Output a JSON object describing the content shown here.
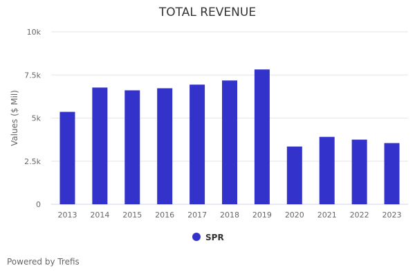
{
  "chart_data": {
    "type": "bar",
    "title": "TOTAL REVENUE",
    "xlabel": "",
    "ylabel": "Values ($ Mil)",
    "categories": [
      "2013",
      "2014",
      "2015",
      "2016",
      "2017",
      "2018",
      "2019",
      "2020",
      "2021",
      "2022",
      "2023"
    ],
    "series": [
      {
        "name": "SPR",
        "color": "#3333cc",
        "values": [
          5360,
          6770,
          6610,
          6730,
          6940,
          7180,
          7820,
          3350,
          3910,
          3750,
          3550
        ]
      }
    ],
    "ylim": [
      0,
      10000
    ],
    "yticks": [
      0,
      2500,
      5000,
      7500,
      10000
    ],
    "ytick_labels": [
      "0",
      "2.5k",
      "5k",
      "7.5k",
      "10k"
    ],
    "grid": true,
    "legend": "bottom-center"
  },
  "footer": "Powered by Trefis"
}
